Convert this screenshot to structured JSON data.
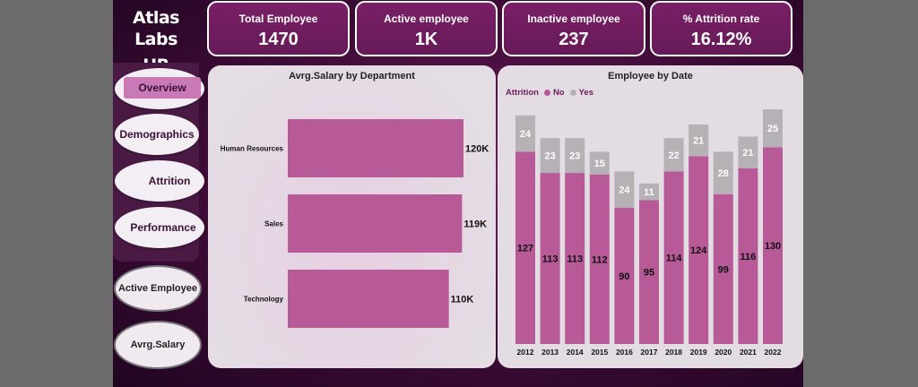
{
  "brand": {
    "line1": "Atlas Labs",
    "line2": "HR Analysis"
  },
  "nav": {
    "items": [
      {
        "label": "Overview"
      },
      {
        "label": "Demographics"
      },
      {
        "label": "Attrition"
      },
      {
        "label": "Performance"
      }
    ]
  },
  "buttons": {
    "active_employee": "Active Employee",
    "avg_salary": "Avrg.Salary"
  },
  "kpis": [
    {
      "title": "Total Employee",
      "value": "1470"
    },
    {
      "title": "Active employee",
      "value": "1K"
    },
    {
      "title": "Inactive employee",
      "value": "237"
    },
    {
      "title": "% Attrition rate",
      "value": "16.12%"
    }
  ],
  "colors": {
    "bar": "#b75a97",
    "yes": "#b5b1b5"
  },
  "chart_data": [
    {
      "type": "bar",
      "title": "Avrg.Salary by Department",
      "categories": [
        "Human Resources",
        "Sales",
        "Technology"
      ],
      "values": [
        120,
        119,
        110
      ],
      "labels": [
        "120K",
        "119K",
        "110K"
      ],
      "xlim": [
        0,
        120
      ]
    },
    {
      "type": "bar",
      "stacked": true,
      "title": "Employee by Date",
      "legend_title": "Attrition",
      "x": [
        "2012",
        "2013",
        "2014",
        "2015",
        "2016",
        "2017",
        "2018",
        "2019",
        "2020",
        "2021",
        "2022"
      ],
      "series": [
        {
          "name": "No",
          "values": [
            127,
            113,
            113,
            112,
            90,
            95,
            114,
            124,
            99,
            116,
            130
          ]
        },
        {
          "name": "Yes",
          "values": [
            24,
            23,
            23,
            15,
            24,
            11,
            22,
            21,
            28,
            21,
            25
          ]
        }
      ],
      "legend_position": "top-left"
    }
  ]
}
